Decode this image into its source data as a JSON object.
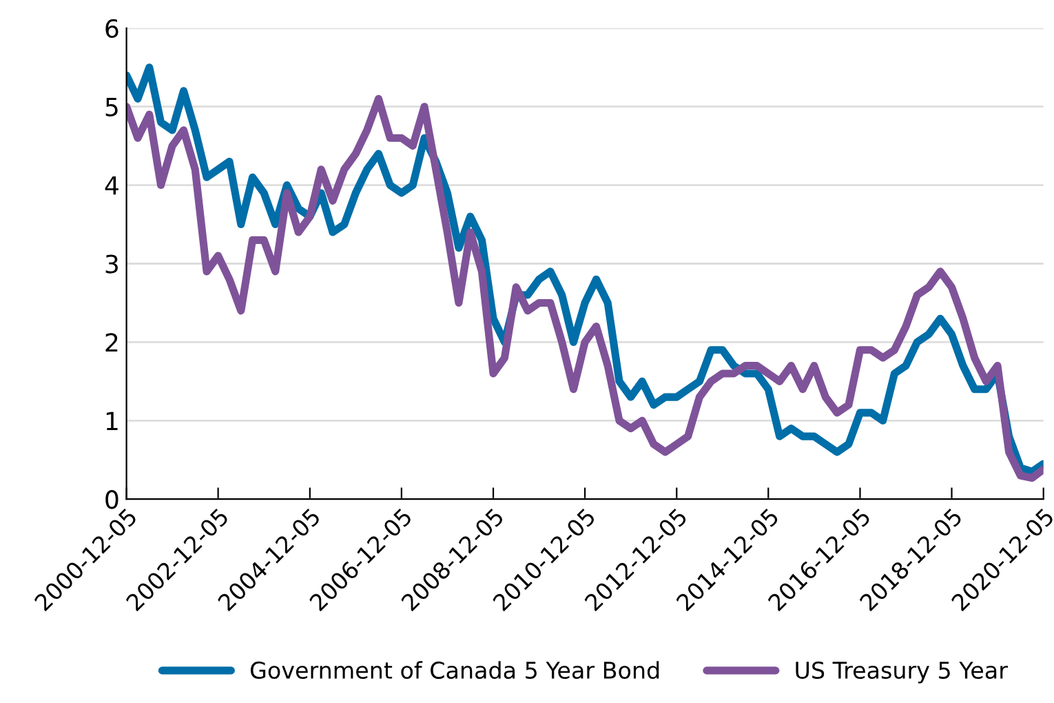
{
  "chart_data": {
    "type": "line",
    "x": [
      "2000-12-05",
      "2001-03",
      "2001-06",
      "2001-09",
      "2001-12",
      "2002-03",
      "2002-06",
      "2002-09",
      "2002-12",
      "2003-03",
      "2003-06",
      "2003-09",
      "2003-12",
      "2004-03",
      "2004-06",
      "2004-09",
      "2004-12",
      "2005-03",
      "2005-06",
      "2005-09",
      "2005-12",
      "2006-03",
      "2006-06",
      "2006-09",
      "2006-12",
      "2007-03",
      "2007-06",
      "2007-09",
      "2007-12",
      "2008-03",
      "2008-06",
      "2008-09",
      "2008-12",
      "2009-03",
      "2009-06",
      "2009-09",
      "2009-12",
      "2010-03",
      "2010-06",
      "2010-09",
      "2010-12",
      "2011-03",
      "2011-06",
      "2011-09",
      "2011-12",
      "2012-03",
      "2012-06",
      "2012-09",
      "2012-12",
      "2013-03",
      "2013-06",
      "2013-09",
      "2013-12",
      "2014-03",
      "2014-06",
      "2014-09",
      "2014-12",
      "2015-03",
      "2015-06",
      "2015-09",
      "2015-12",
      "2016-03",
      "2016-06",
      "2016-09",
      "2016-12",
      "2017-03",
      "2017-06",
      "2017-09",
      "2017-12",
      "2018-03",
      "2018-06",
      "2018-09",
      "2018-12",
      "2019-03",
      "2019-06",
      "2019-09",
      "2019-12",
      "2020-03",
      "2020-06",
      "2020-09",
      "2020-12-05"
    ],
    "series": [
      {
        "name": "Government of Canada 5 Year Bond",
        "color": "#006ea8",
        "values": [
          5.4,
          5.1,
          5.5,
          4.8,
          4.7,
          5.2,
          4.7,
          4.1,
          4.2,
          4.3,
          3.5,
          4.1,
          3.9,
          3.5,
          4.0,
          3.7,
          3.6,
          3.9,
          3.4,
          3.5,
          3.9,
          4.2,
          4.4,
          4.0,
          3.9,
          4.0,
          4.6,
          4.3,
          3.9,
          3.2,
          3.6,
          3.3,
          2.3,
          2.0,
          2.6,
          2.6,
          2.8,
          2.9,
          2.6,
          2.0,
          2.5,
          2.8,
          2.5,
          1.5,
          1.3,
          1.5,
          1.2,
          1.3,
          1.3,
          1.4,
          1.5,
          1.9,
          1.9,
          1.7,
          1.6,
          1.6,
          1.4,
          0.8,
          0.9,
          0.8,
          0.8,
          0.7,
          0.6,
          0.7,
          1.1,
          1.1,
          1.0,
          1.6,
          1.7,
          2.0,
          2.1,
          2.3,
          2.1,
          1.7,
          1.4,
          1.4,
          1.6,
          0.8,
          0.4,
          0.35,
          0.45
        ]
      },
      {
        "name": "US Treasury 5 Year",
        "color": "#7f5399",
        "values": [
          5.0,
          4.6,
          4.9,
          4.0,
          4.5,
          4.7,
          4.2,
          2.9,
          3.1,
          2.8,
          2.4,
          3.3,
          3.3,
          2.9,
          3.9,
          3.4,
          3.6,
          4.2,
          3.8,
          4.2,
          4.4,
          4.7,
          5.1,
          4.6,
          4.6,
          4.5,
          5.0,
          4.2,
          3.4,
          2.5,
          3.4,
          2.9,
          1.6,
          1.8,
          2.7,
          2.4,
          2.5,
          2.5,
          2.0,
          1.4,
          2.0,
          2.2,
          1.7,
          1.0,
          0.9,
          1.0,
          0.7,
          0.6,
          0.7,
          0.8,
          1.3,
          1.5,
          1.6,
          1.6,
          1.7,
          1.7,
          1.6,
          1.5,
          1.7,
          1.4,
          1.7,
          1.3,
          1.1,
          1.2,
          1.9,
          1.9,
          1.8,
          1.9,
          2.2,
          2.6,
          2.7,
          2.9,
          2.7,
          2.3,
          1.8,
          1.5,
          1.7,
          0.6,
          0.3,
          0.27,
          0.38
        ]
      }
    ],
    "xlim": [
      "2000-12-05",
      "2020-12-05"
    ],
    "xticks": [
      "2000-12-05",
      "2002-12-05",
      "2004-12-05",
      "2006-12-05",
      "2008-12-05",
      "2010-12-05",
      "2012-12-05",
      "2014-12-05",
      "2016-12-05",
      "2018-12-05",
      "2020-12-05"
    ],
    "ylim": [
      0,
      6
    ],
    "yticks": [
      0,
      1,
      2,
      3,
      4,
      5,
      6
    ],
    "grid": "y",
    "legend": "bottom",
    "marker": "none",
    "line_style": "solid"
  }
}
